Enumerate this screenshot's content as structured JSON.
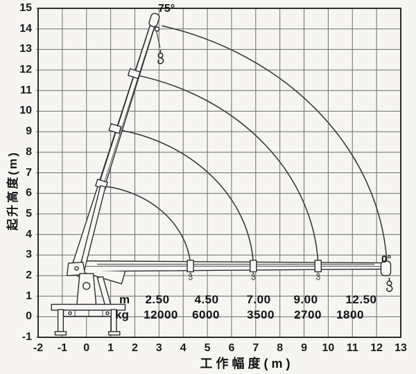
{
  "chart_data": {
    "type": "line",
    "title": "",
    "xlabel": "工作幅度(m)",
    "ylabel": "起升高度(m)",
    "xlim": [
      -2,
      13
    ],
    "ylim": [
      -1,
      15
    ],
    "x_ticks": [
      -2,
      -1,
      0,
      1,
      2,
      3,
      4,
      5,
      6,
      7,
      8,
      9,
      10,
      11,
      12,
      13
    ],
    "y_ticks": [
      15,
      14,
      13,
      12,
      11,
      10,
      9,
      8,
      7,
      6,
      5,
      4,
      3,
      2,
      1,
      0,
      -1
    ],
    "grid": true,
    "annotations": {
      "max_boom_angle": "75°",
      "min_boom_angle": "0°"
    },
    "boom": {
      "pivot": [
        -0.45,
        2.42
      ],
      "raised_tip": [
        2.78,
        14.35
      ],
      "horizontal_tip": [
        12.4,
        2.5
      ],
      "max_angle_deg": 75,
      "min_angle_deg": 0
    },
    "arcs": [
      {
        "start": [
          0.72,
          6.35
        ],
        "end": [
          4.3,
          2.62
        ],
        "radius": 4.2
      },
      {
        "start": [
          1.28,
          9.1
        ],
        "end": [
          6.9,
          2.62
        ],
        "radius": 7.0
      },
      {
        "start": [
          2.07,
          11.75
        ],
        "end": [
          9.58,
          2.62
        ],
        "radius": 9.9
      },
      {
        "start": [
          3.12,
          14.15
        ],
        "end": [
          12.42,
          2.75
        ],
        "radius": 12.6
      }
    ],
    "hook_marks_x": [
      4.3,
      6.9,
      9.58
    ],
    "load_table": {
      "row1_label": "m",
      "row2_label": "kg",
      "columns": [
        {
          "radius_m": "2.50",
          "capacity_kg": "12000"
        },
        {
          "radius_m": "4.50",
          "capacity_kg": "6000"
        },
        {
          "radius_m": "7.00",
          "capacity_kg": "3500"
        },
        {
          "radius_m": "9.00",
          "capacity_kg": "2700"
        },
        {
          "radius_m": "12.50",
          "capacity_kg": "1800"
        }
      ]
    }
  }
}
